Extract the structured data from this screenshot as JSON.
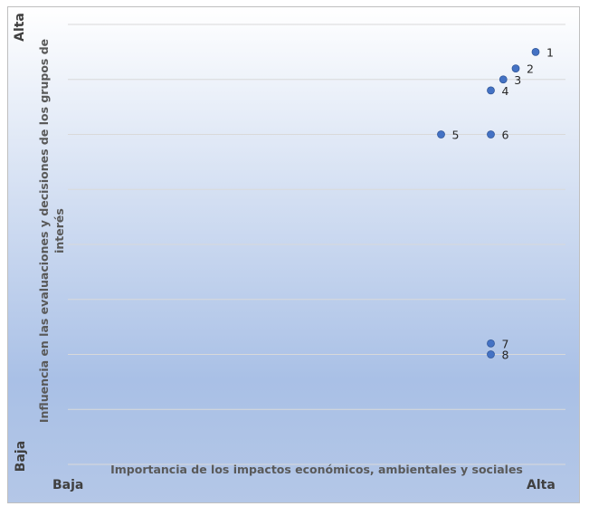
{
  "chart_data": {
    "type": "scatter",
    "title": "",
    "xlabel": "Importancia de los impactos económicos, ambientales y sociales",
    "ylabel": "Influencia en las evaluaciones y decisiones de los grupos de interés",
    "x_axis_ends": {
      "low": "Baja",
      "high": "Alta"
    },
    "y_axis_ends": {
      "low": "Baja",
      "high": "Alta"
    },
    "xlim": [
      0,
      10
    ],
    "ylim": [
      0,
      8
    ],
    "grid": "horizontal",
    "legend": "none",
    "points": [
      {
        "label": "1",
        "x": 9.4,
        "y": 7.5
      },
      {
        "label": "2",
        "x": 9.0,
        "y": 7.2
      },
      {
        "label": "3",
        "x": 8.75,
        "y": 7.0
      },
      {
        "label": "4",
        "x": 8.5,
        "y": 6.8
      },
      {
        "label": "5",
        "x": 7.5,
        "y": 6.0
      },
      {
        "label": "6",
        "x": 8.5,
        "y": 6.0
      },
      {
        "label": "7",
        "x": 8.5,
        "y": 2.2
      },
      {
        "label": "8",
        "x": 8.5,
        "y": 2.0
      }
    ]
  },
  "colors": {
    "marker": "#4472c4",
    "marker_stroke": "#2f5597",
    "gridline": "#d9d9d9",
    "bg_top": "#ffffff",
    "bg_bottom": "#b4c7e7",
    "label_text": "#262626"
  }
}
